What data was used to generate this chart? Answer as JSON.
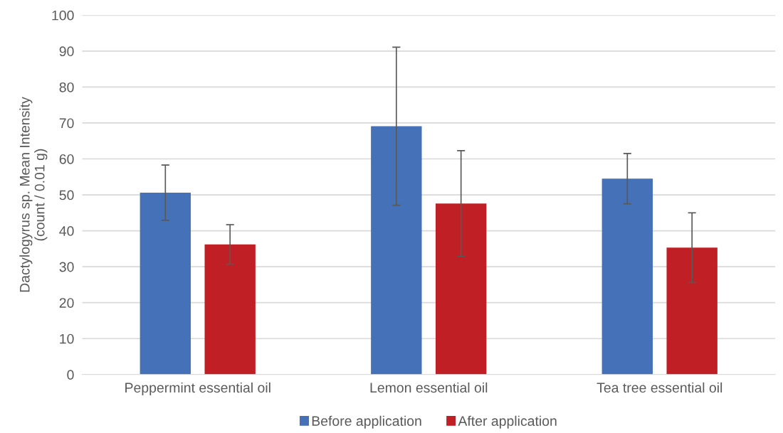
{
  "chart_data": {
    "type": "bar",
    "ylabel": "Dactylogyrus sp. Mean Intensity\n(count / 0.01 g)",
    "categories": [
      "Peppermint essential oil",
      "Lemon essential oil",
      "Tea tree essential oil"
    ],
    "series": [
      {
        "name": "Before application",
        "color": "#4571b8",
        "values": [
          50.6,
          69.1,
          54.5
        ],
        "errors": [
          7.7,
          22,
          7.0
        ]
      },
      {
        "name": "After application",
        "color": "#c01f26",
        "values": [
          36.2,
          47.6,
          35.3
        ],
        "errors": [
          5.5,
          14.7,
          9.7
        ]
      }
    ],
    "ylim": [
      0,
      100
    ],
    "yticks": [
      0,
      10,
      20,
      30,
      40,
      50,
      60,
      70,
      80,
      90,
      100
    ],
    "grid": "y",
    "legend": "bottom"
  }
}
